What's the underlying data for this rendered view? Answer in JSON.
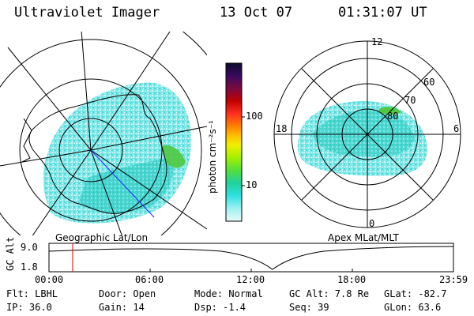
{
  "header": {
    "title": "Ultraviolet Imager",
    "date": "13 Oct 07",
    "time": "01:31:07 UT"
  },
  "left_panel": {
    "label": "Geographic Lat/Lon"
  },
  "right_panel": {
    "label": "Apex MLat/MLT",
    "mlt_labels": {
      "top": "12",
      "left": "18",
      "right": "6",
      "bottom": "0"
    },
    "lat_labels": [
      "60",
      "70",
      "80"
    ]
  },
  "colorbar": {
    "unit_label": "photon cm⁻²s⁻¹",
    "ticks": [
      "100",
      "10"
    ],
    "colors": [
      "#0b0b2e",
      "#3a0a5e",
      "#6a1a6e",
      "#8a0a3a",
      "#c00000",
      "#ff2020",
      "#ff7000",
      "#ffb000",
      "#ffe000",
      "#d8f000",
      "#a0f000",
      "#60e000",
      "#20d080",
      "#10d0c0",
      "#40e0e0",
      "#90f0f0",
      "#d0f8f8"
    ]
  },
  "altitude_plot": {
    "ylabel": "GC Alt",
    "yticks": [
      "9.0",
      "1.8"
    ],
    "xticks": [
      "00:00",
      "06:00",
      "12:00",
      "18:00",
      "23:59"
    ]
  },
  "info": {
    "flt": "Flt: LBHL",
    "ip": "IP: 36.0",
    "door": "Door: Open",
    "gain": "Gain: 14",
    "mode": "Mode: Normal",
    "dsp": "Dsp:    -1.4",
    "gcalt": "GC Alt: 7.8 Re",
    "seq": "Seq: 39",
    "glat": "GLat: -82.7",
    "glon": "GLon:  63.6"
  }
}
